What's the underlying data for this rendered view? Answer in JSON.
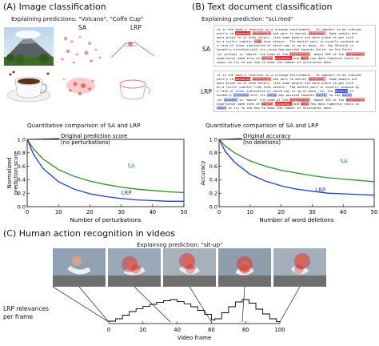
{
  "panelA": {
    "title": "(A) Image classification",
    "prediction": "Explaining predictions: \"Volcano\", \"Coffe Cup\"",
    "sa": "SA",
    "lrp": "LRP",
    "chart_title": "Quantitative comparison of SA and LRP",
    "annotation": [
      "Original prediction score",
      "(no perturbations)"
    ]
  },
  "panelB": {
    "title": "(B) Text document classification",
    "prediction": "Explaining prediction: \"sci.med\"",
    "sa": "SA",
    "lrp": "LRP",
    "chart_title": "Quantitative comparison of SA and LRP",
    "annotation": [
      "Original accuracy",
      "(no deletions)"
    ],
    "doc_lines": [
      "it is the body's reaction to a strange environment.  It appears to be induced",
      "partly to physical discomfort and part to mental distress.  Some people are",
      "more prone to it than others, like some people are more prone to get sick",
      "on a roller coaster ride than others.  The mental part is usually induced by",
      "a lack of clear indication of which way is up or down, ie: the Shuttle is",
      "normally oriented with its cargo bay pointed towards Earth, so the Earth",
      "(or ground) is \"above\" the head of the astronauts.  About 50% of the astronauts",
      "experience some form of motion sickness, and NASA has done numerous tests in",
      "space to try to see how to keep the number of occurances down."
    ]
  },
  "panelC": {
    "title": "(C) Human action recognition in videos",
    "prediction": "Explaining prediction: \"sit-up\"",
    "ylabel": [
      "LRP relevances",
      "per frame"
    ],
    "xlabel": "Video frame"
  },
  "chart_data": [
    {
      "type": "line",
      "title": "",
      "xlabel": "Number of perturbations",
      "ylabel": "Normalized prediction score",
      "xlim": [
        0,
        50
      ],
      "ylim": [
        0.0,
        1.0
      ],
      "xticks": [
        "0",
        "10",
        "20",
        "30",
        "40",
        "50"
      ],
      "yticks": [
        "0.0",
        "0.2",
        "0.4",
        "0.6",
        "0.8",
        "1.0"
      ],
      "series": [
        {
          "name": "SA",
          "color": "#2e8b2e",
          "x": [
            0,
            2,
            5,
            10,
            15,
            20,
            25,
            30,
            35,
            40,
            45,
            50
          ],
          "y": [
            1.0,
            0.86,
            0.71,
            0.55,
            0.45,
            0.38,
            0.33,
            0.29,
            0.26,
            0.24,
            0.22,
            0.21
          ]
        },
        {
          "name": "LRP",
          "color": "#1f3fbf",
          "x": [
            0,
            2,
            5,
            10,
            15,
            20,
            25,
            30,
            35,
            40,
            45,
            50
          ],
          "y": [
            1.0,
            0.78,
            0.57,
            0.37,
            0.26,
            0.19,
            0.15,
            0.12,
            0.1,
            0.09,
            0.08,
            0.08
          ]
        }
      ]
    },
    {
      "type": "line",
      "title": "",
      "xlabel": "Number of word deletions",
      "ylabel": "Accuracy",
      "xlim": [
        0,
        50
      ],
      "ylim": [
        0.0,
        1.0
      ],
      "xticks": [
        "0",
        "10",
        "20",
        "30",
        "40",
        "50"
      ],
      "yticks": [
        "0.0",
        "0.2",
        "0.4",
        "0.6",
        "0.8",
        "1.0"
      ],
      "series": [
        {
          "name": "SA",
          "color": "#2e8b2e",
          "x": [
            0,
            2,
            5,
            10,
            15,
            20,
            25,
            30,
            35,
            40,
            45,
            50
          ],
          "y": [
            1.0,
            0.9,
            0.8,
            0.68,
            0.6,
            0.54,
            0.5,
            0.46,
            0.43,
            0.41,
            0.39,
            0.37
          ]
        },
        {
          "name": "LRP",
          "color": "#1f3fbf",
          "x": [
            0,
            2,
            5,
            10,
            15,
            20,
            25,
            30,
            35,
            40,
            45,
            50
          ],
          "y": [
            1.0,
            0.82,
            0.66,
            0.48,
            0.38,
            0.31,
            0.26,
            0.23,
            0.2,
            0.19,
            0.18,
            0.17
          ]
        }
      ]
    },
    {
      "type": "line",
      "title": "",
      "xlabel": "Video frame",
      "ylabel": "LRP relevances per frame",
      "xlim": [
        0,
        100
      ],
      "xticks": [
        "0",
        "20",
        "40",
        "60",
        "80",
        "100"
      ],
      "series": [
        {
          "name": "",
          "color": "#000000",
          "x": [
            0,
            4,
            8,
            12,
            16,
            20,
            24,
            28,
            32,
            36,
            40,
            44,
            48,
            52,
            56,
            60,
            62,
            66,
            70,
            74,
            78,
            82,
            86,
            90,
            94,
            98,
            100
          ],
          "y": [
            0.1,
            0.2,
            0.35,
            0.5,
            0.62,
            0.72,
            0.8,
            0.88,
            0.95,
            1.0,
            0.92,
            0.82,
            0.7,
            0.55,
            0.38,
            0.15,
            0.2,
            0.45,
            0.7,
            0.9,
            1.0,
            0.85,
            0.6,
            0.4,
            0.2,
            0.08,
            0.05
          ]
        }
      ]
    }
  ]
}
